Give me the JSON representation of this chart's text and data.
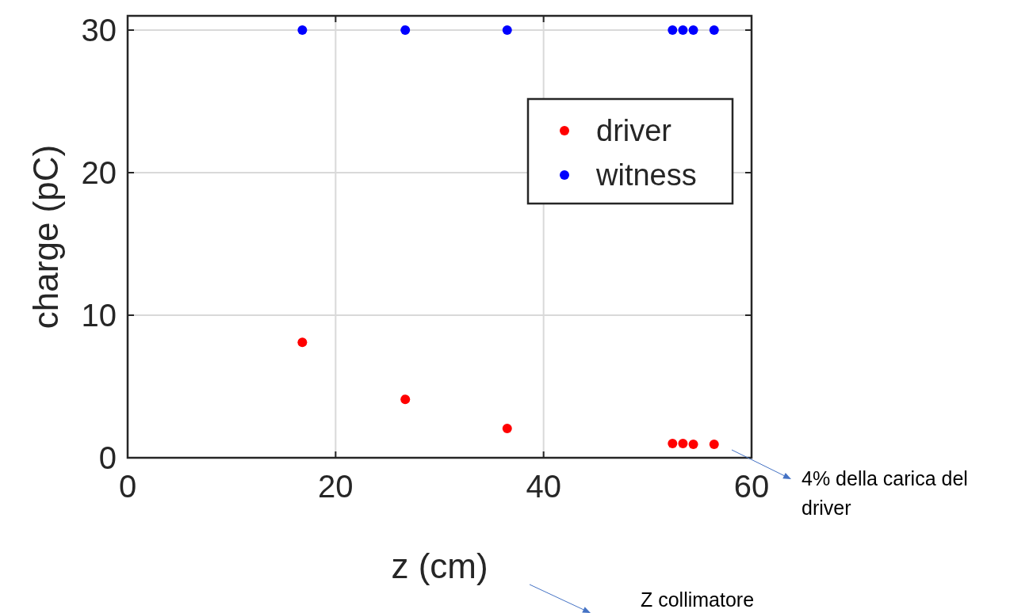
{
  "chart_data": {
    "type": "scatter",
    "xlabel": "z (cm)",
    "ylabel": "charge (pC)",
    "x": [
      16.8,
      26.7,
      36.5,
      52.4,
      53.4,
      54.4,
      56.4
    ],
    "series": [
      {
        "name": "driver",
        "color": "#ff0000",
        "values": [
          8.1,
          4.1,
          2.05,
          1.0,
          1.0,
          0.95,
          0.95
        ]
      },
      {
        "name": "witness",
        "color": "#0000ff",
        "values": [
          30,
          30,
          30,
          30,
          30,
          30,
          30
        ]
      }
    ],
    "xlim": [
      0,
      60
    ],
    "ylim": [
      0,
      31
    ],
    "xticks": [
      0,
      20,
      40,
      60
    ],
    "yticks": [
      0,
      10,
      20,
      30
    ],
    "grid": true,
    "legend": "top right",
    "marker": "circle",
    "annotations": [
      "4% della carica del driver",
      "Z collimatore"
    ]
  }
}
